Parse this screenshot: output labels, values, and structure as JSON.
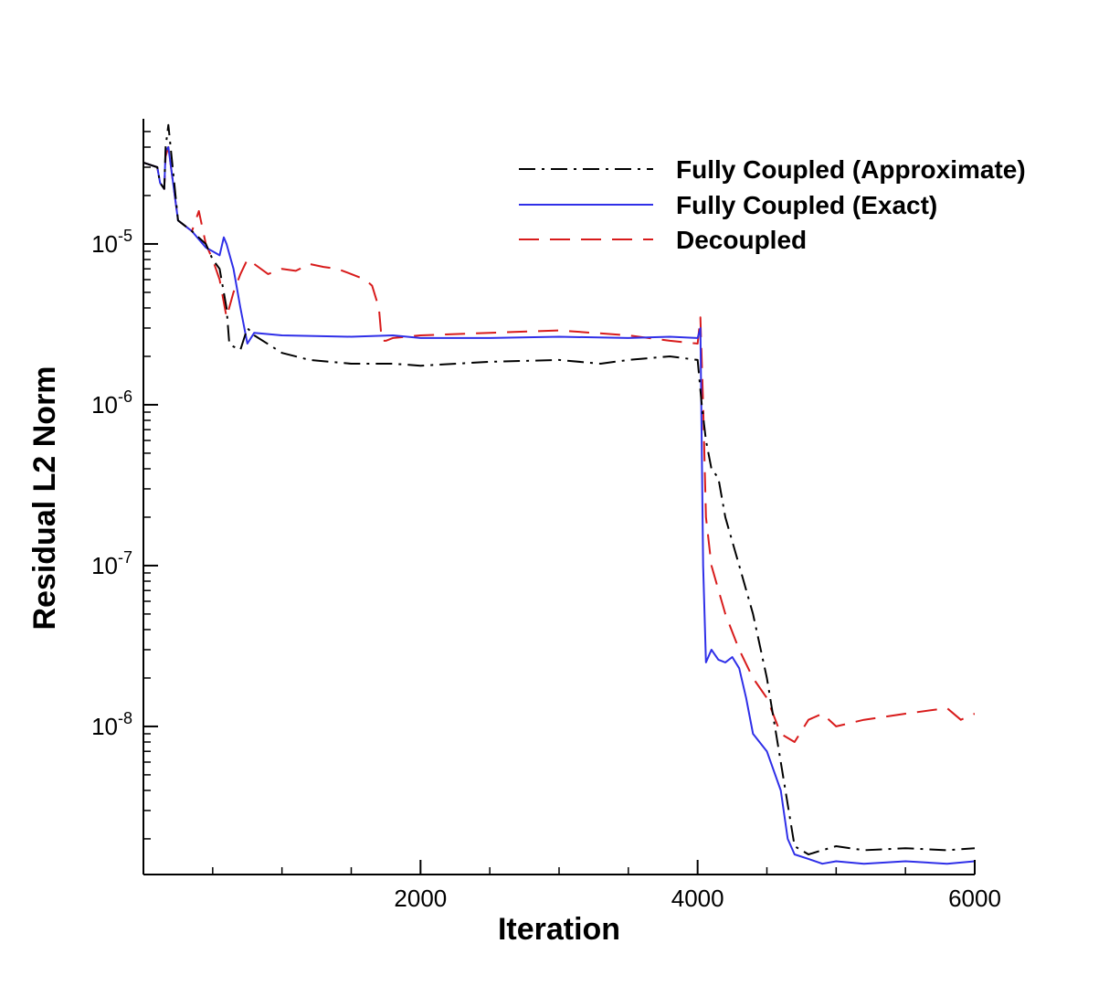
{
  "chart_data": {
    "type": "line",
    "title": "",
    "xlabel": "Iteration",
    "ylabel": "Residual L2 Norm",
    "xlim": [
      0,
      6000
    ],
    "ylim": [
      1.2e-09,
      6e-05
    ],
    "yscale": "log",
    "grid": false,
    "legend_position": "top-right",
    "x_ticks": [
      {
        "value": 2000,
        "label": "2000"
      },
      {
        "value": 4000,
        "label": "4000"
      },
      {
        "value": 6000,
        "label": "6000"
      }
    ],
    "y_ticks": [
      {
        "value": 1e-05,
        "base": "10",
        "exp": "-5"
      },
      {
        "value": 1e-06,
        "base": "10",
        "exp": "-6"
      },
      {
        "value": 1e-07,
        "base": "10",
        "exp": "-7"
      },
      {
        "value": 1e-08,
        "base": "10",
        "exp": "-8"
      }
    ],
    "series": [
      {
        "name": "Fully Coupled (Approximate)",
        "color": "#000000",
        "dash": "dash-dot",
        "x": [
          0,
          100,
          120,
          150,
          160,
          180,
          250,
          350,
          450,
          500,
          550,
          600,
          620,
          650,
          700,
          750,
          800,
          1000,
          1200,
          1500,
          1800,
          2000,
          2500,
          3000,
          3300,
          3500,
          3800,
          4000,
          4030,
          4060,
          4100,
          4150,
          4200,
          4300,
          4400,
          4500,
          4600,
          4700,
          4800,
          4900,
          5000,
          5200,
          5500,
          5800,
          6000
        ],
        "y": [
          3.2e-05,
          3e-05,
          2.4e-05,
          2.2e-05,
          4e-05,
          5.5e-05,
          1.4e-05,
          1.2e-05,
          1e-05,
          8e-06,
          7e-06,
          4e-06,
          2.4e-06,
          2.3e-06,
          2.2e-06,
          3e-06,
          2.7e-06,
          2.1e-06,
          1.9e-06,
          1.8e-06,
          1.8e-06,
          1.75e-06,
          1.85e-06,
          1.9e-06,
          1.8e-06,
          1.9e-06,
          2e-06,
          1.9e-06,
          1e-06,
          6e-07,
          4e-07,
          3.5e-07,
          2e-07,
          1e-07,
          5e-08,
          2e-08,
          6e-09,
          1.8e-09,
          1.6e-09,
          1.7e-09,
          1.8e-09,
          1.7e-09,
          1.75e-09,
          1.7e-09,
          1.75e-09
        ]
      },
      {
        "name": "Fully Coupled (Exact)",
        "color": "#2f2fe8",
        "dash": "solid",
        "x": [
          0,
          100,
          120,
          150,
          160,
          180,
          250,
          350,
          450,
          500,
          550,
          580,
          600,
          650,
          700,
          750,
          800,
          1000,
          1500,
          1800,
          2000,
          2500,
          3000,
          3500,
          3800,
          4000,
          4020,
          4040,
          4060,
          4100,
          4150,
          4200,
          4250,
          4300,
          4350,
          4400,
          4500,
          4600,
          4650,
          4700,
          4800,
          4900,
          5000,
          5200,
          5500,
          5800,
          6000
        ],
        "y": [
          3.2e-05,
          3e-05,
          2.4e-05,
          2.2e-05,
          3.8e-05,
          4e-05,
          1.4e-05,
          1.2e-05,
          9.5e-06,
          9e-06,
          8.5e-06,
          1.1e-05,
          1e-05,
          7e-06,
          4e-06,
          2.4e-06,
          2.8e-06,
          2.7e-06,
          2.65e-06,
          2.7e-06,
          2.6e-06,
          2.6e-06,
          2.65e-06,
          2.6e-06,
          2.65e-06,
          2.6e-06,
          3e-06,
          1e-07,
          2.5e-08,
          3e-08,
          2.6e-08,
          2.5e-08,
          2.7e-08,
          2.3e-08,
          1.5e-08,
          9e-09,
          7e-09,
          4e-09,
          2e-09,
          1.6e-09,
          1.5e-09,
          1.4e-09,
          1.45e-09,
          1.4e-09,
          1.45e-09,
          1.4e-09,
          1.45e-09
        ]
      },
      {
        "name": "Decoupled",
        "color": "#d81b1b",
        "dash": "dashed",
        "x": [
          0,
          100,
          120,
          150,
          160,
          180,
          250,
          350,
          400,
          450,
          500,
          550,
          600,
          650,
          700,
          750,
          800,
          900,
          1000,
          1100,
          1200,
          1300,
          1400,
          1500,
          1600,
          1650,
          1700,
          1720,
          1750,
          1800,
          2000,
          2500,
          3000,
          3500,
          3800,
          4000,
          4020,
          4040,
          4060,
          4100,
          4200,
          4300,
          4400,
          4500,
          4600,
          4700,
          4800,
          4900,
          5000,
          5200,
          5500,
          5800,
          5900,
          6000
        ],
        "y": [
          3.2e-05,
          3e-05,
          2.4e-05,
          2.2e-05,
          3.5e-05,
          4e-05,
          1.4e-05,
          1.2e-05,
          1.6e-05,
          1e-05,
          8e-06,
          6e-06,
          3.5e-06,
          5e-06,
          6.5e-06,
          8e-06,
          7.5e-06,
          6.5e-06,
          7e-06,
          6.8e-06,
          7.5e-06,
          7.2e-06,
          7e-06,
          6.5e-06,
          6e-06,
          5.5e-06,
          4e-06,
          2.5e-06,
          2.5e-06,
          2.6e-06,
          2.7e-06,
          2.8e-06,
          2.9e-06,
          2.7e-06,
          2.5e-06,
          2.4e-06,
          3.5e-06,
          1e-06,
          2e-07,
          1e-07,
          5e-08,
          3e-08,
          2e-08,
          1.5e-08,
          9e-09,
          8e-09,
          1.1e-08,
          1.2e-08,
          1e-08,
          1.1e-08,
          1.2e-08,
          1.3e-08,
          1.1e-08,
          1.2e-08
        ]
      }
    ]
  }
}
